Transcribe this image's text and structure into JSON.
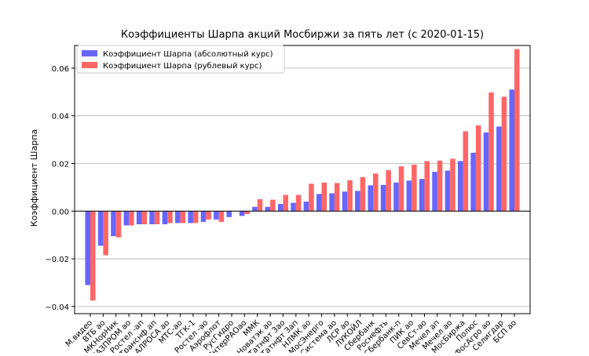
{
  "chart_data": {
    "type": "bar",
    "title": "Коэффициенты Шарпа акций Мосбиржи за пять лет (с 2020-01-15)",
    "xlabel": "",
    "ylabel": "Коэффициент Шарпа",
    "ylim": [
      -0.043,
      0.0695
    ],
    "y_ticks": [
      -0.04,
      -0.02,
      0.0,
      0.02,
      0.04,
      0.06
    ],
    "y_tick_labels": [
      "−0.04",
      "−0.02",
      "0.00",
      "0.02",
      "0.04",
      "0.06"
    ],
    "grid": "horizontal",
    "legend_position": "top-left",
    "categories": [
      "М.видео",
      "ВТБ ао",
      "МКНорНик",
      "ГАЗПРОМ ао",
      "Ростел -ап",
      "Транснф ап",
      "АЛРОСА ао",
      "МТС-ао",
      "ТГК-1",
      "Ростел -ао",
      "Аэрофлот",
      "РусГидро",
      "ИнтерРАОао",
      "ММК",
      "Новатэк ао",
      "Татнфт 3ао",
      "Татнфт 3ап",
      "НЛМК ао",
      "МосЭнерго",
      "Система ао",
      "ЛСР ао",
      "ЛУКОЙЛ",
      "Сбербанк",
      "Роснефть",
      "Сбербанк-п",
      "ПИК ао",
      "СевСт-ао",
      "Мечел ап",
      "Мечел ао",
      "МосБиржа",
      "Полюс",
      "ФосАгро ао",
      "Селигдар",
      "БСП ао"
    ],
    "series": [
      {
        "name": "Коэффициент Шарпа (абсолютный курс)",
        "color": "#6666ff",
        "values": [
          -0.031,
          -0.0145,
          -0.0105,
          -0.006,
          -0.0055,
          -0.0055,
          -0.0055,
          -0.005,
          -0.005,
          -0.0045,
          -0.0035,
          -0.0025,
          -0.002,
          0.0018,
          0.0018,
          0.003,
          0.0035,
          0.004,
          0.0072,
          0.0075,
          0.0082,
          0.0085,
          0.0108,
          0.011,
          0.012,
          0.0128,
          0.0135,
          0.0165,
          0.017,
          0.021,
          0.0245,
          0.033,
          0.0355,
          0.051
        ]
      },
      {
        "name": "Коэффициент Шарпа (рублевый курс)",
        "color": "#ff6666",
        "values": [
          -0.0375,
          -0.0185,
          -0.011,
          -0.006,
          -0.0055,
          -0.0055,
          -0.005,
          -0.005,
          -0.005,
          -0.0035,
          -0.0045,
          0.0,
          -0.0012,
          0.005,
          0.0048,
          0.0068,
          0.0068,
          0.0115,
          0.012,
          0.0118,
          0.013,
          0.0143,
          0.0158,
          0.0172,
          0.0188,
          0.0195,
          0.021,
          0.0212,
          0.022,
          0.0335,
          0.036,
          0.0498,
          0.048,
          0.068
        ]
      }
    ]
  }
}
